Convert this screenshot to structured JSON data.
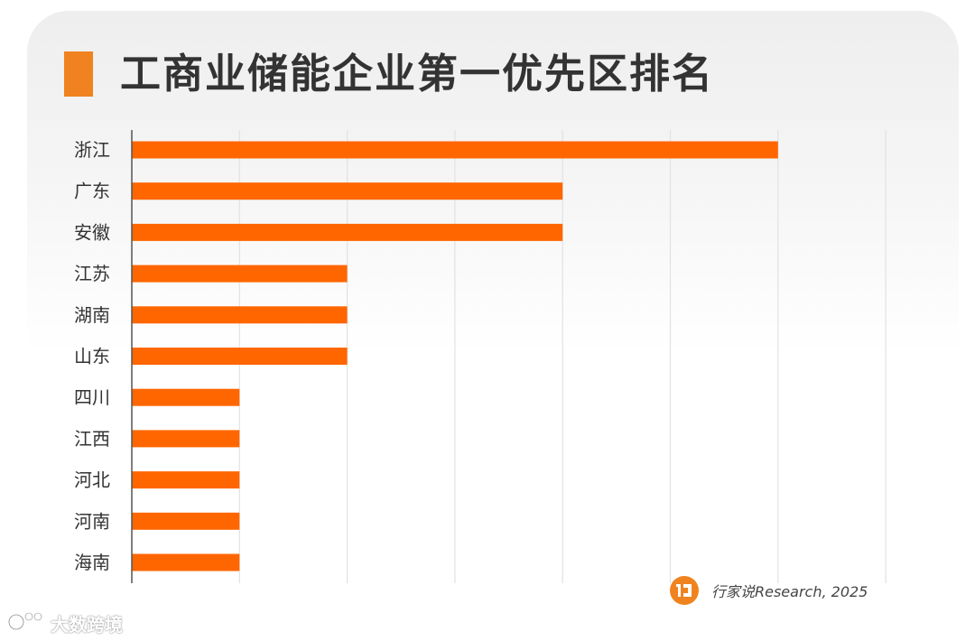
{
  "chart_data": {
    "type": "bar",
    "orientation": "horizontal",
    "title": "工商业储能企业第一优先区排名",
    "categories": [
      "浙江",
      "广东",
      "安徽",
      "江苏",
      "湖南",
      "山东",
      "四川",
      "江西",
      "河北",
      "河南",
      "海南"
    ],
    "values": [
      6,
      4,
      4,
      2,
      2,
      2,
      1,
      1,
      1,
      1,
      1
    ],
    "xlim": [
      0,
      7
    ],
    "grid": true,
    "xlabel": "",
    "ylabel": "",
    "source": "行家说Research, 2025"
  },
  "colors": {
    "bar": "#ff6600",
    "title_mark": "#f0831f",
    "grid": "#e2e2e2",
    "axis": "#555555"
  },
  "watermark": {
    "text": "大数跨境"
  }
}
